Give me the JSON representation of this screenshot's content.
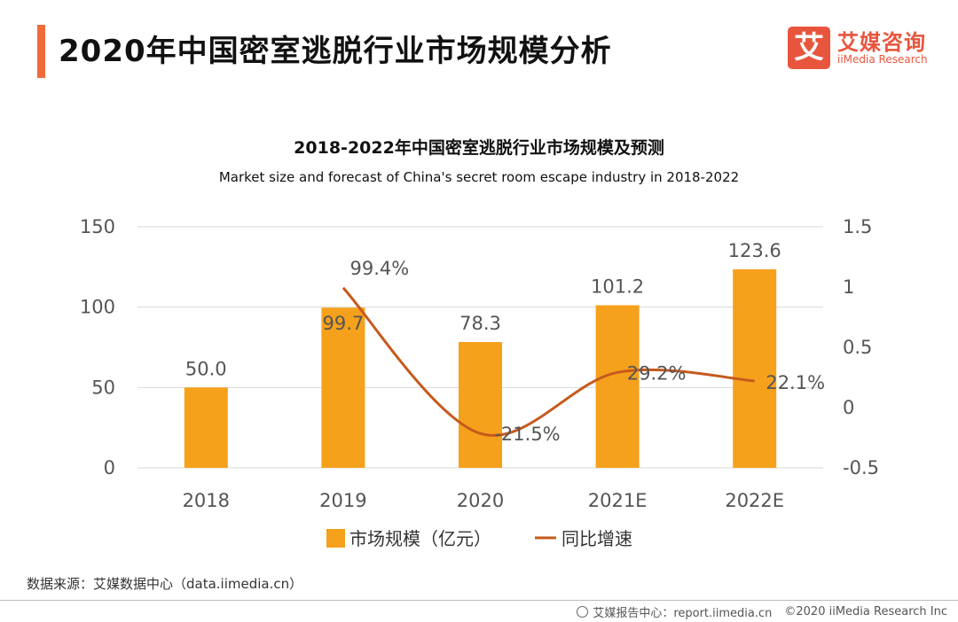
{
  "header": {
    "title": "2020年中国密室逃脱行业市场规模分析",
    "brand_mark": "艾",
    "brand_cn": "艾媒咨询",
    "brand_en": "iiMedia Research"
  },
  "chart_data": {
    "type": "bar+line",
    "title": "2018-2022年中国密室逃脱行业市场规模及预测",
    "subtitle": "Market size and forecast of China's secret room escape industry in 2018-2022",
    "categories": [
      "2018",
      "2019",
      "2020",
      "2021E",
      "2022E"
    ],
    "series": [
      {
        "name": "市场规模（亿元）",
        "kind": "bar",
        "axis": "left",
        "color": "#f5a11c",
        "values": [
          50.0,
          99.7,
          78.3,
          101.2,
          123.6
        ],
        "labels": [
          "50.0",
          "99.7",
          "78.3",
          "101.2",
          "123.6"
        ]
      },
      {
        "name": "同比增速",
        "kind": "line",
        "axis": "right",
        "color": "#c55a1d",
        "values": [
          null,
          0.994,
          -0.215,
          0.292,
          0.221
        ],
        "labels": [
          "",
          "99.4%",
          "-21.5%",
          "29.2%",
          "22.1%"
        ]
      }
    ],
    "y_left": {
      "min": 0,
      "max": 150,
      "ticks": [
        "0",
        "50",
        "100",
        "150"
      ]
    },
    "y_right": {
      "min": -0.5,
      "max": 1.5,
      "ticks": [
        "-0.5",
        "0",
        "0.5",
        "1",
        "1.5"
      ]
    },
    "grid": true,
    "legend_position": "bottom"
  },
  "footer": {
    "source": "数据来源：艾媒数据中心（data.iimedia.cn）",
    "report": "艾媒报告中心：report.iimedia.cn",
    "copyright": "©2020  iiMedia Research  Inc"
  }
}
